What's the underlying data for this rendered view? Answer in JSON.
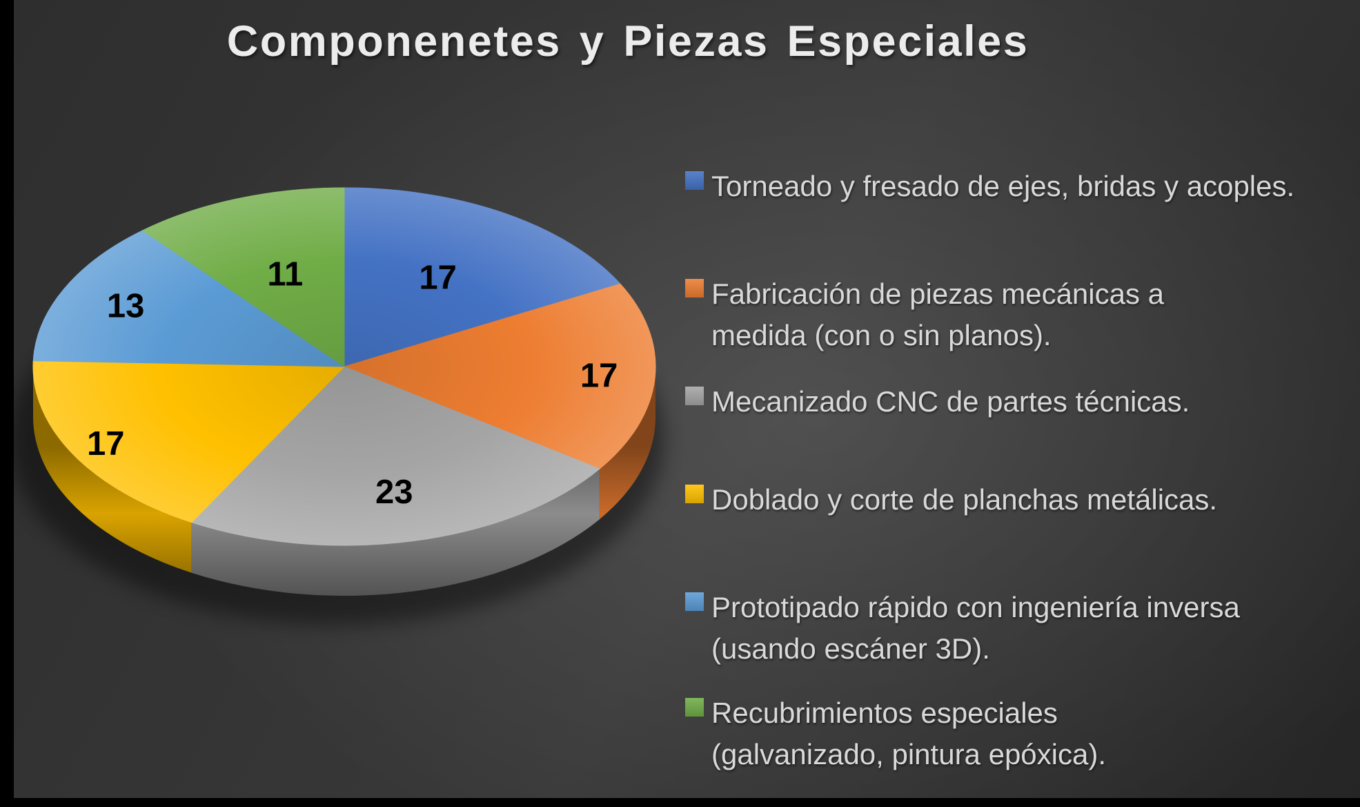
{
  "chart_data": {
    "type": "pie",
    "style": "3d",
    "title": "Componenetes y Piezas Especiales",
    "legend_position": "right",
    "data_labels": "values",
    "slices": [
      {
        "label": "Torneado y fresado de ejes, bridas y acoples.",
        "value": 17,
        "color": "#4472C4"
      },
      {
        "label": "Fabricación de piezas mecánicas a medida (con o sin planos).",
        "value": 17,
        "color": "#ED7D31"
      },
      {
        "label": "Mecanizado CNC de partes técnicas.",
        "value": 23,
        "color": "#A5A5A5"
      },
      {
        "label": "Doblado y corte de planchas metálicas.",
        "value": 17,
        "color": "#FFC000"
      },
      {
        "label": "Prototipado rápido con ingeniería inversa (usando escáner 3D).",
        "value": 13,
        "color": "#5B9BD5"
      },
      {
        "label": "Recubrimientos especiales (galvanizado, pintura epóxica).",
        "value": 11,
        "color": "#70AD47"
      }
    ],
    "value_label_color": "#000000",
    "legend_text_color": "#d9d9d9",
    "title_color": "#ececec",
    "background_base_color": "#393939",
    "frame_color": "#000000"
  }
}
